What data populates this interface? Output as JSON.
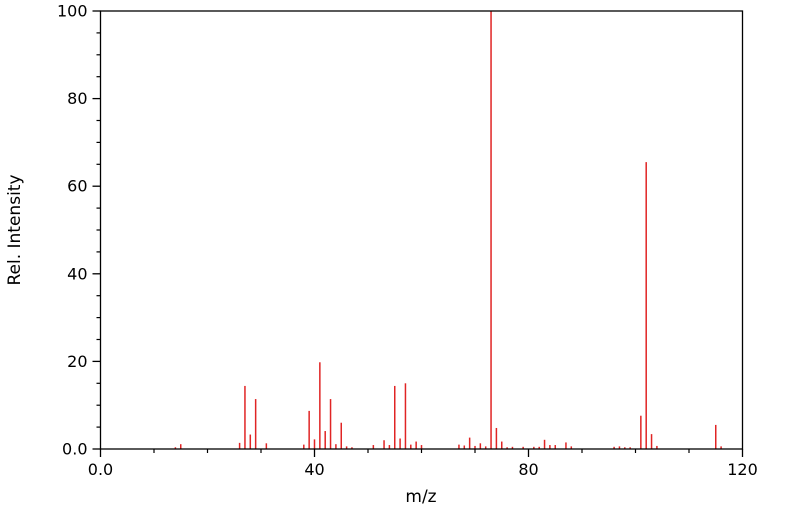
{
  "chart_data": {
    "type": "bar",
    "subtype": "mass-spectrum-stick-plot",
    "title": "",
    "xlabel": "m/z",
    "ylabel": "Rel. Intensity",
    "xlim": [
      0,
      120
    ],
    "ylim": [
      0,
      100
    ],
    "grid": false,
    "legend": "none",
    "bar_color": "#e02424",
    "axis_color": "#000000",
    "background": "#ffffff",
    "x_ticks": {
      "major": [
        {
          "v": 0,
          "label": "0.0"
        },
        {
          "v": 40,
          "label": "40"
        },
        {
          "v": 80,
          "label": "80"
        },
        {
          "v": 120,
          "label": "120"
        }
      ],
      "minor_step": 10
    },
    "y_ticks": {
      "major": [
        {
          "v": 0,
          "label": "0.0"
        },
        {
          "v": 20,
          "label": "20"
        },
        {
          "v": 40,
          "label": "40"
        },
        {
          "v": 60,
          "label": "60"
        },
        {
          "v": 80,
          "label": "80"
        },
        {
          "v": 100,
          "label": "100"
        }
      ],
      "minor_step": 5
    },
    "peaks": [
      [
        14,
        0.4
      ],
      [
        15,
        1.1
      ],
      [
        26,
        1.4
      ],
      [
        27,
        14.4
      ],
      [
        28,
        3.3
      ],
      [
        29,
        11.4
      ],
      [
        31,
        1.3
      ],
      [
        38,
        1.0
      ],
      [
        39,
        8.7
      ],
      [
        40,
        2.2
      ],
      [
        41,
        19.8
      ],
      [
        42,
        4.1
      ],
      [
        43,
        11.4
      ],
      [
        44,
        1.1
      ],
      [
        45,
        6.0
      ],
      [
        46,
        0.6
      ],
      [
        47,
        0.4
      ],
      [
        51,
        0.9
      ],
      [
        53,
        2.0
      ],
      [
        54,
        0.9
      ],
      [
        55,
        14.4
      ],
      [
        56,
        2.4
      ],
      [
        57,
        15.0
      ],
      [
        58,
        1.0
      ],
      [
        59,
        1.7
      ],
      [
        60,
        0.9
      ],
      [
        67,
        1.0
      ],
      [
        68,
        0.8
      ],
      [
        69,
        2.6
      ],
      [
        70,
        0.7
      ],
      [
        71,
        1.3
      ],
      [
        72,
        0.6
      ],
      [
        73,
        100.0
      ],
      [
        74,
        4.8
      ],
      [
        75,
        1.7
      ],
      [
        76,
        0.4
      ],
      [
        77,
        0.5
      ],
      [
        79,
        0.5
      ],
      [
        81,
        0.5
      ],
      [
        82,
        0.5
      ],
      [
        83,
        2.1
      ],
      [
        84,
        0.9
      ],
      [
        85,
        0.9
      ],
      [
        87,
        1.5
      ],
      [
        88,
        0.6
      ],
      [
        96,
        0.5
      ],
      [
        97,
        0.6
      ],
      [
        98,
        0.4
      ],
      [
        99,
        0.4
      ],
      [
        101,
        7.6
      ],
      [
        102,
        65.5
      ],
      [
        103,
        3.4
      ],
      [
        104,
        0.7
      ],
      [
        115,
        5.5
      ],
      [
        116,
        0.6
      ]
    ]
  }
}
